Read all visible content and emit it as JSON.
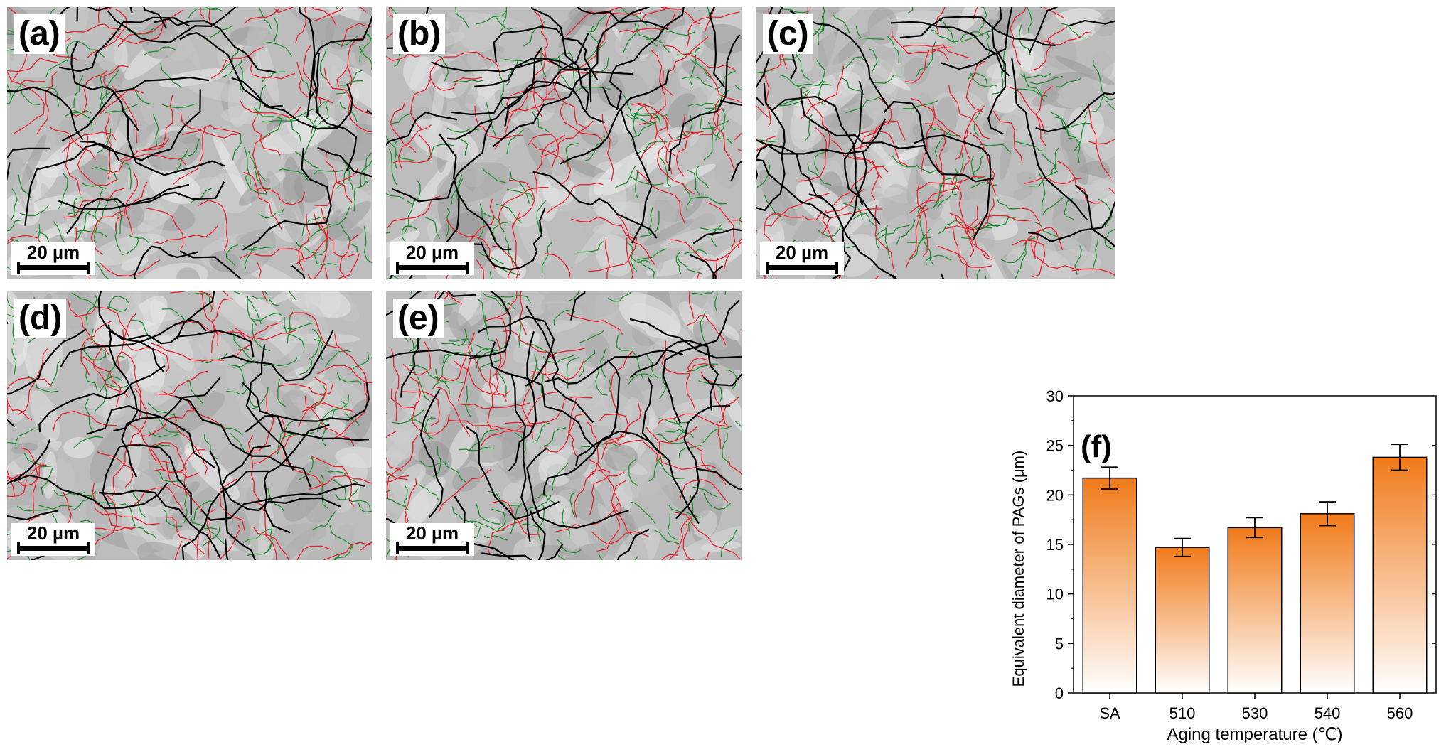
{
  "panels": [
    {
      "id": "a",
      "label": "(a)",
      "scale": "20 µm"
    },
    {
      "id": "b",
      "label": "(b)",
      "scale": "20 µm"
    },
    {
      "id": "c",
      "label": "(c)",
      "scale": "20 µm"
    },
    {
      "id": "d",
      "label": "(d)",
      "scale": "20 µm"
    },
    {
      "id": "e",
      "label": "(e)",
      "scale": "20 µm"
    }
  ],
  "boundary_colors": {
    "prior_austenite": "#000000",
    "block": "#e8202a",
    "lath": "#1e8f2e"
  },
  "chart_data": {
    "type": "bar",
    "panel_label": "(f)",
    "categories": [
      "SA",
      "510",
      "530",
      "540",
      "560"
    ],
    "values": [
      21.7,
      14.7,
      16.7,
      18.1,
      23.8
    ],
    "errors": [
      1.1,
      0.9,
      1.0,
      1.2,
      1.3
    ],
    "xlabel": "Aging temperature (℃)",
    "ylabel": "Equivalent diameter of PAGs (μm)",
    "ylim": [
      0,
      30
    ],
    "yticks": [
      "0",
      "5",
      "10",
      "15",
      "20",
      "25",
      "30"
    ],
    "bar_gradient": [
      "#f07a1a",
      "#ffffff"
    ]
  }
}
